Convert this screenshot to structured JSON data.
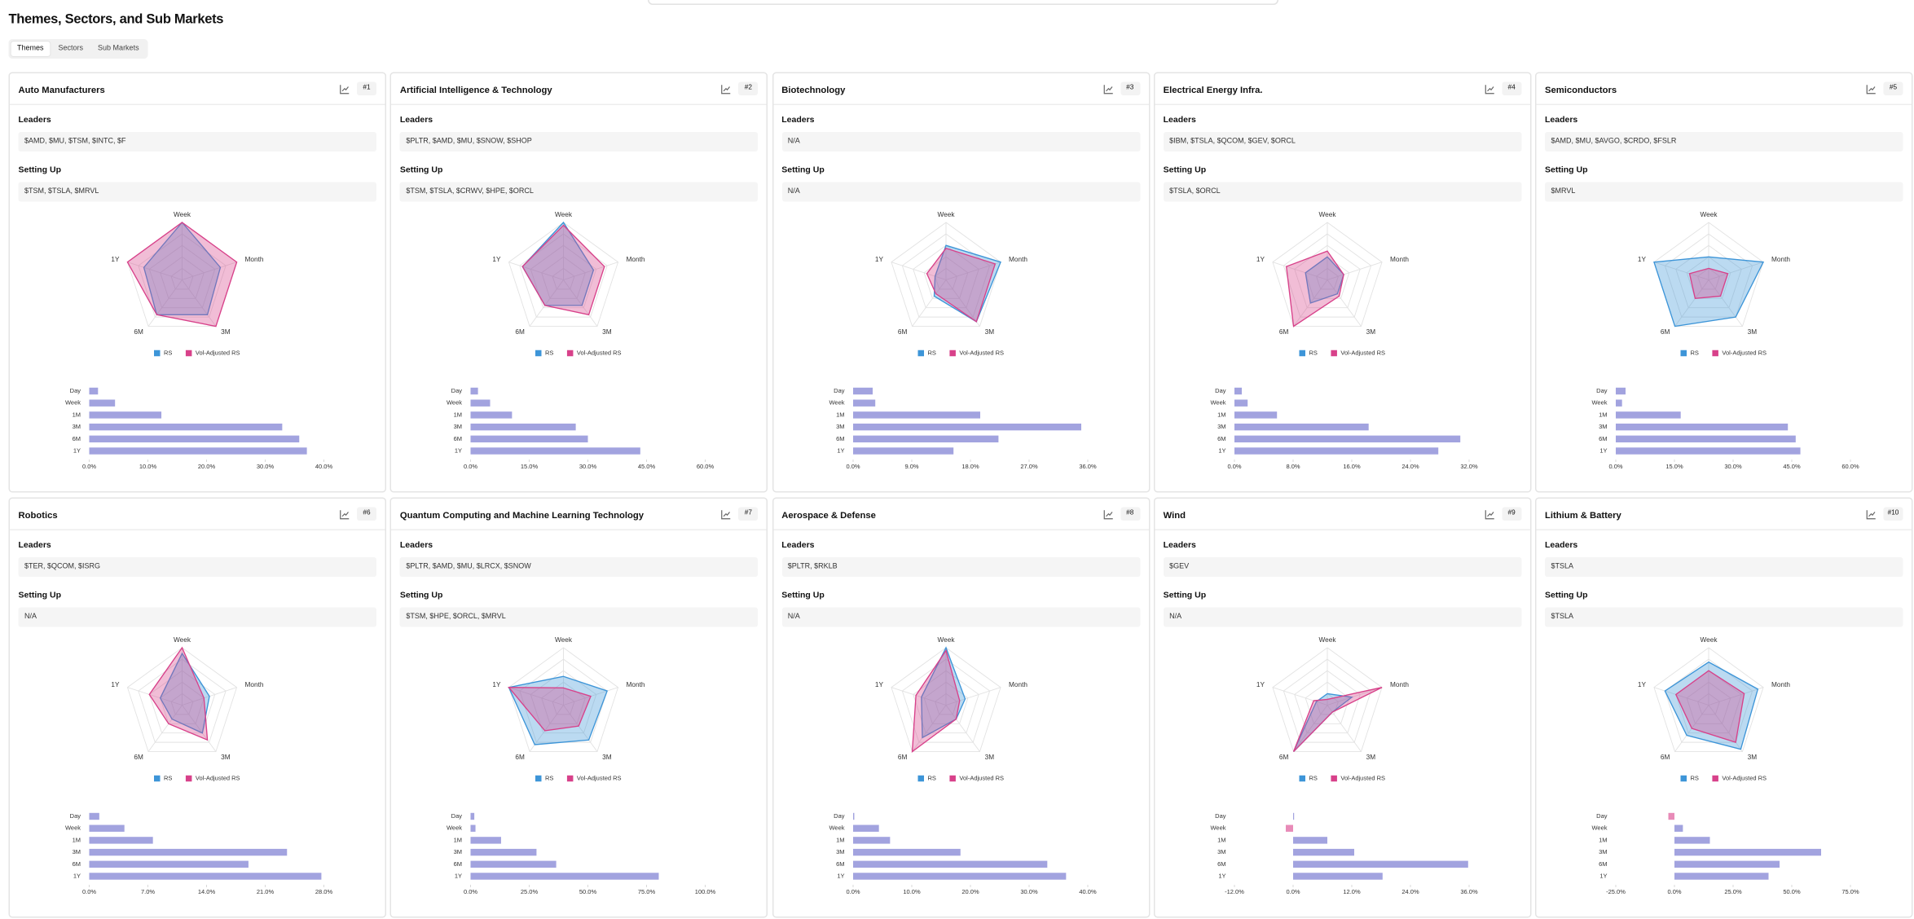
{
  "header": {
    "title": "Themes, Sectors, and Sub Markets"
  },
  "tabs": [
    "Themes",
    "Sectors",
    "Sub Markets"
  ],
  "active_tab": 0,
  "section_labels": {
    "leaders": "Leaders",
    "setting_up": "Setting Up"
  },
  "radar_axes": [
    "Week",
    "Month",
    "3M",
    "6M",
    "1Y"
  ],
  "radar_range": [
    0,
    100
  ],
  "legend_series": [
    {
      "name": "RS",
      "color": "#3d95d8"
    },
    {
      "name": "Vol-Adjusted RS",
      "color": "#d8418a"
    }
  ],
  "bar_categories": [
    "Day",
    "Week",
    "1M",
    "3M",
    "6M",
    "1Y"
  ],
  "bar_colors": {
    "positive": "#a2a3df",
    "negative": "#e88bb8"
  },
  "cards": [
    {
      "title": "Auto Manufacturers",
      "rank": "#1",
      "leaders": "$AMD, $MU, $TSM, $INTC, $F",
      "setting_up": "$TSM, $TSLA, $MRVL",
      "radar": [
        [
          100,
          70,
          75,
          75,
          70
        ],
        [
          100,
          100,
          100,
          75,
          100
        ]
      ],
      "bars": {
        "values": [
          1.5,
          4.4,
          12.3,
          32.9,
          35.8,
          37.1
        ],
        "xlim": [
          0,
          40
        ],
        "xticks": [
          {
            "value": 0,
            "label": "0.0%"
          },
          {
            "value": 10,
            "label": "10.0%"
          },
          {
            "value": 20,
            "label": "20.0%"
          },
          {
            "value": 30,
            "label": "30.0%"
          },
          {
            "value": 40,
            "label": "40.0%"
          }
        ]
      }
    },
    {
      "title": "Artificial Intelligence & Technology",
      "rank": "#2",
      "leaders": "$PLTR, $AMD, $MU, $SNOW, $SHOP",
      "setting_up": "$TSM, $TSLA, $CRWV, $HPE, $ORCL",
      "radar": [
        [
          100,
          55,
          55,
          55,
          75
        ],
        [
          95,
          75,
          75,
          55,
          75
        ]
      ],
      "bars": {
        "values": [
          1.9,
          5,
          10.6,
          26.9,
          30,
          43.4
        ],
        "xlim": [
          0,
          60
        ],
        "xticks": [
          {
            "value": 0,
            "label": "0.0%"
          },
          {
            "value": 15,
            "label": "15.0%"
          },
          {
            "value": 30,
            "label": "30.0%"
          },
          {
            "value": 45,
            "label": "45.0%"
          },
          {
            "value": 60,
            "label": "60.0%"
          }
        ]
      }
    },
    {
      "title": "Biotechnology",
      "rank": "#3",
      "leaders": "N/A",
      "setting_up": "N/A",
      "radar": [
        [
          60,
          100,
          90,
          35,
          20
        ],
        [
          55,
          90,
          90,
          30,
          35
        ]
      ],
      "bars": {
        "values": [
          3,
          3.4,
          19.5,
          35,
          22.3,
          15.4
        ],
        "xlim": [
          0,
          36
        ],
        "xticks": [
          {
            "value": 0,
            "label": "0.0%"
          },
          {
            "value": 9,
            "label": "9.0%"
          },
          {
            "value": 18,
            "label": "18.0%"
          },
          {
            "value": 27,
            "label": "27.0%"
          },
          {
            "value": 36,
            "label": "36.0%"
          }
        ]
      }
    },
    {
      "title": "Electrical Energy Infra.",
      "rank": "#4",
      "leaders": "$IBM, $TSLA, $QCOM, $GEV, $ORCL",
      "setting_up": "$TSLA, $ORCL",
      "radar": [
        [
          40,
          30,
          30,
          50,
          40
        ],
        [
          50,
          30,
          35,
          100,
          75
        ]
      ],
      "bars": {
        "values": [
          1,
          1.8,
          5.8,
          18.3,
          30.8,
          27.8
        ],
        "xlim": [
          0,
          32
        ],
        "xticks": [
          {
            "value": 0,
            "label": "0.0%"
          },
          {
            "value": 8,
            "label": "8.0%"
          },
          {
            "value": 16,
            "label": "16.0%"
          },
          {
            "value": 24,
            "label": "24.0%"
          },
          {
            "value": 32,
            "label": "32.0%"
          }
        ]
      }
    },
    {
      "title": "Semiconductors",
      "rank": "#5",
      "leaders": "$AMD, $MU, $AVGO, $CRDO, $FSLR",
      "setting_up": "$MRVL",
      "radar": [
        [
          40,
          100,
          80,
          100,
          100
        ],
        [
          20,
          35,
          35,
          40,
          35
        ]
      ],
      "bars": {
        "values": [
          2.5,
          1.6,
          16.6,
          44,
          46,
          47.2
        ],
        "xlim": [
          0,
          60
        ],
        "xticks": [
          {
            "value": 0,
            "label": "0.0%"
          },
          {
            "value": 15,
            "label": "15.0%"
          },
          {
            "value": 30,
            "label": "30.0%"
          },
          {
            "value": 45,
            "label": "45.0%"
          },
          {
            "value": 60,
            "label": "60.0%"
          }
        ]
      }
    },
    {
      "title": "Robotics",
      "rank": "#6",
      "leaders": "$TER, $QCOM, $ISRG",
      "setting_up": "N/A",
      "radar": [
        [
          90,
          50,
          60,
          30,
          40
        ],
        [
          100,
          40,
          75,
          40,
          60
        ]
      ],
      "bars": {
        "values": [
          1.2,
          4.2,
          7.6,
          23.6,
          19,
          27.7
        ],
        "xlim": [
          0,
          28
        ],
        "xticks": [
          {
            "value": 0,
            "label": "0.0%"
          },
          {
            "value": 7,
            "label": "7.0%"
          },
          {
            "value": 14,
            "label": "14.0%"
          },
          {
            "value": 21,
            "label": "21.0%"
          },
          {
            "value": 28,
            "label": "28.0%"
          }
        ]
      }
    },
    {
      "title": "Quantum Computing and Machine Learning Technology",
      "rank": "#7",
      "leaders": "$PLTR, $AMD, $MU, $LRCX, $SNOW",
      "setting_up": "$TSM, $HPE, $ORCL, $MRVL",
      "radar": [
        [
          50,
          80,
          75,
          85,
          100
        ],
        [
          30,
          50,
          45,
          55,
          100
        ]
      ],
      "bars": {
        "values": [
          1.6,
          2.1,
          13,
          28.1,
          36.5,
          80.2
        ],
        "xlim": [
          0,
          100
        ],
        "xticks": [
          {
            "value": 0,
            "label": "0.0%"
          },
          {
            "value": 25,
            "label": "25.0%"
          },
          {
            "value": 50,
            "label": "50.0%"
          },
          {
            "value": 75,
            "label": "75.0%"
          },
          {
            "value": 100,
            "label": "100.0%"
          }
        ]
      }
    },
    {
      "title": "Aerospace & Defense",
      "rank": "#8",
      "leaders": "$PLTR, $RKLB",
      "setting_up": "N/A",
      "radar": [
        [
          100,
          35,
          30,
          70,
          45
        ],
        [
          95,
          25,
          30,
          100,
          55
        ]
      ],
      "bars": {
        "values": [
          0.2,
          4.4,
          6.3,
          18.3,
          33.1,
          36.3
        ],
        "xlim": [
          0,
          40
        ],
        "xticks": [
          {
            "value": 0,
            "label": "0.0%"
          },
          {
            "value": 10,
            "label": "10.0%"
          },
          {
            "value": 20,
            "label": "20.0%"
          },
          {
            "value": 30,
            "label": "30.0%"
          },
          {
            "value": 40,
            "label": "40.0%"
          }
        ]
      }
    },
    {
      "title": "Wind",
      "rank": "#9",
      "leaders": "$GEV",
      "setting_up": "N/A",
      "radar": [
        [
          20,
          45,
          15,
          100,
          20
        ],
        [
          10,
          100,
          15,
          100,
          25
        ]
      ],
      "bars": {
        "values": [
          0.2,
          -1.5,
          7,
          12.5,
          35.8,
          18.3
        ],
        "xlim": [
          -12,
          36
        ],
        "xticks": [
          {
            "value": -12,
            "label": "-12.0%"
          },
          {
            "value": 0,
            "label": "0.0%"
          },
          {
            "value": 12,
            "label": "12.0%"
          },
          {
            "value": 24,
            "label": "24.0%"
          },
          {
            "value": 36,
            "label": "36.0%"
          }
        ]
      }
    },
    {
      "title": "Lithium & Battery",
      "rank": "#10",
      "leaders": "$TSLA",
      "setting_up": "$TSLA",
      "radar": [
        [
          75,
          90,
          95,
          65,
          80
        ],
        [
          60,
          65,
          80,
          50,
          60
        ]
      ],
      "bars": {
        "values": [
          -2.6,
          3.6,
          15.1,
          62.5,
          44.8,
          40.1
        ],
        "xlim": [
          -25,
          75
        ],
        "xticks": [
          {
            "value": -25,
            "label": "-25.0%"
          },
          {
            "value": 0,
            "label": "0.0%"
          },
          {
            "value": 25,
            "label": "25.0%"
          },
          {
            "value": 50,
            "label": "50.0%"
          },
          {
            "value": 75,
            "label": "75.0%"
          }
        ]
      }
    }
  ]
}
